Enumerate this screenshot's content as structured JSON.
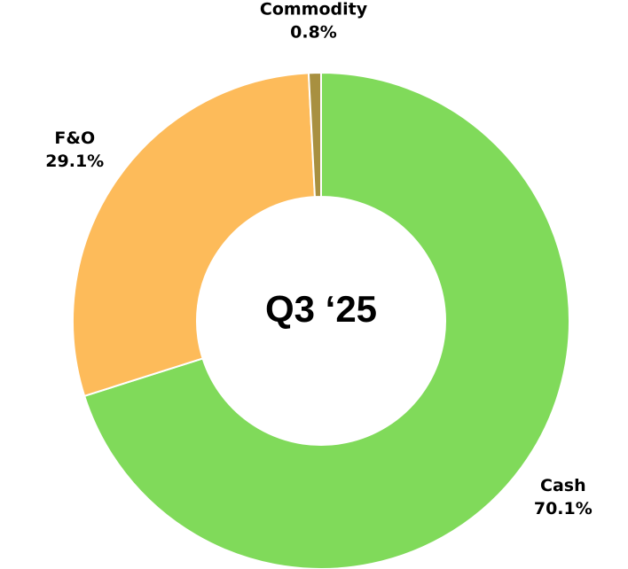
{
  "chart_data": {
    "type": "pie",
    "center_label": "Q3 ‘25",
    "categories": [
      "Cash",
      "F&O",
      "Commodity"
    ],
    "values": [
      70.1,
      29.1,
      0.8
    ],
    "value_labels": [
      "70.1%",
      "29.1%",
      "0.8%"
    ],
    "colors": [
      "#80da5a",
      "#fdbb5a",
      "#a89040"
    ]
  }
}
